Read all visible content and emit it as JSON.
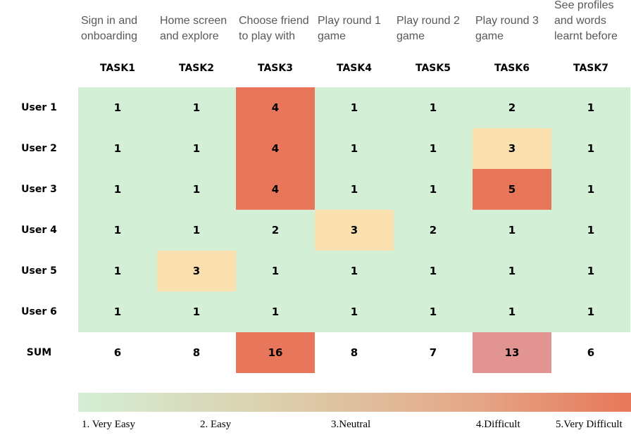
{
  "chart_data": {
    "type": "heatmap",
    "task_descriptions": [
      [
        "Sign in and",
        "onboarding"
      ],
      [
        "Home screen",
        "and explore"
      ],
      [
        "Choose friend",
        "to play with"
      ],
      [
        "Play round 1",
        "game"
      ],
      [
        "Play round 2",
        "game"
      ],
      [
        "Play round 3",
        "game"
      ],
      [
        "See profiles",
        "and words",
        "learnt before"
      ]
    ],
    "columns": [
      "TASK1",
      "TASK2",
      "TASK3",
      "TASK4",
      "TASK5",
      "TASK6",
      "TASK7"
    ],
    "rows": [
      "User 1",
      "User 2",
      "User 3",
      "User 4",
      "User 5",
      "User 6"
    ],
    "values": [
      [
        1,
        1,
        4,
        1,
        1,
        2,
        1
      ],
      [
        1,
        1,
        4,
        1,
        1,
        3,
        1
      ],
      [
        1,
        1,
        4,
        1,
        1,
        5,
        1
      ],
      [
        1,
        1,
        2,
        3,
        2,
        1,
        1
      ],
      [
        1,
        3,
        1,
        1,
        1,
        1,
        1
      ],
      [
        1,
        1,
        1,
        1,
        1,
        1,
        1
      ]
    ],
    "sum_label": "SUM",
    "sums": [
      6,
      8,
      16,
      8,
      7,
      13,
      6
    ],
    "scale_labels": [
      "1. Very Easy",
      "2. Easy",
      "3.Neutral",
      "4.Difficult",
      "5.Very Difficult"
    ],
    "colors": {
      "easy": "#d3efd5",
      "neutral": "#f9e0ae",
      "difficult": "#e8765a",
      "sum_high": "#e8765a",
      "sum_medium": "#e29492"
    }
  }
}
